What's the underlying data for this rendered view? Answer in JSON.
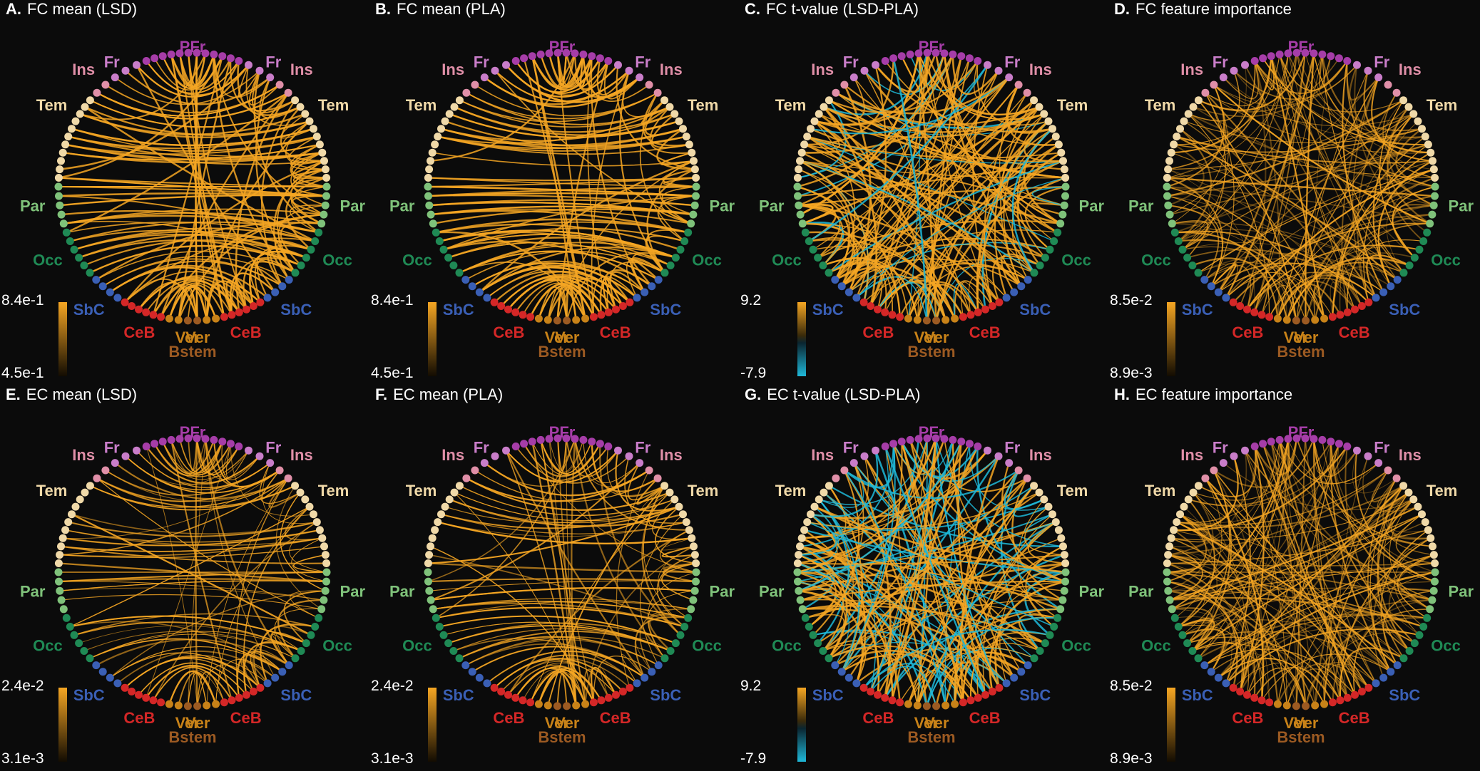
{
  "figure": {
    "panels": [
      {
        "letter": "A.",
        "title": "FC mean (LSD)",
        "type": "mean",
        "cmap_max": "8.4e-1",
        "cmap_min": "4.5e-1",
        "density": 170,
        "seed": 11
      },
      {
        "letter": "B.",
        "title": "FC mean (PLA)",
        "type": "mean",
        "cmap_max": "8.4e-1",
        "cmap_min": "4.5e-1",
        "density": 170,
        "seed": 23
      },
      {
        "letter": "C.",
        "title": "FC t-value (LSD-PLA)",
        "type": "tvalue",
        "cmap_max": "9.2",
        "cmap_min": "-7.9",
        "density": 190,
        "seed": 37
      },
      {
        "letter": "D.",
        "title": "FC feature importance",
        "type": "importance",
        "cmap_max": "8.5e-2",
        "cmap_min": "8.9e-3",
        "density": 200,
        "seed": 41
      },
      {
        "letter": "E.",
        "title": "EC mean (LSD)",
        "type": "mean_thin",
        "cmap_max": "2.4e-2",
        "cmap_min": "3.1e-3",
        "density": 140,
        "seed": 53
      },
      {
        "letter": "F.",
        "title": "EC mean (PLA)",
        "type": "mean_thin",
        "cmap_max": "2.4e-2",
        "cmap_min": "3.1e-3",
        "density": 150,
        "seed": 67
      },
      {
        "letter": "G.",
        "title": "EC t-value (LSD-PLA)",
        "type": "tvalue_ec",
        "cmap_max": "9.2",
        "cmap_min": "-7.9",
        "density": 200,
        "seed": 71
      },
      {
        "letter": "H.",
        "title": "EC feature importance",
        "type": "importance_ec",
        "cmap_max": "8.5e-2",
        "cmap_min": "8.9e-3",
        "density": 210,
        "seed": 83
      }
    ],
    "regions": [
      {
        "label": "PFr",
        "color": "#a63da8"
      },
      {
        "label": "Fr",
        "color": "#c97dc9"
      },
      {
        "label": "Ins",
        "color": "#e08fa8"
      },
      {
        "label": "Tem",
        "color": "#f0d9a8"
      },
      {
        "label": "Par",
        "color": "#7fc27a"
      },
      {
        "label": "Occ",
        "color": "#1f8a55"
      },
      {
        "label": "SbC",
        "color": "#3a5fb5"
      },
      {
        "label": "CeB",
        "color": "#d42727"
      },
      {
        "label": "Ver",
        "color": "#c88218"
      },
      {
        "label": "Bstem",
        "color": "#9c5a22"
      }
    ],
    "colors": {
      "positive": "#f5a623",
      "negative": "#1fb8d8",
      "background": "#0b0b0b"
    }
  }
}
